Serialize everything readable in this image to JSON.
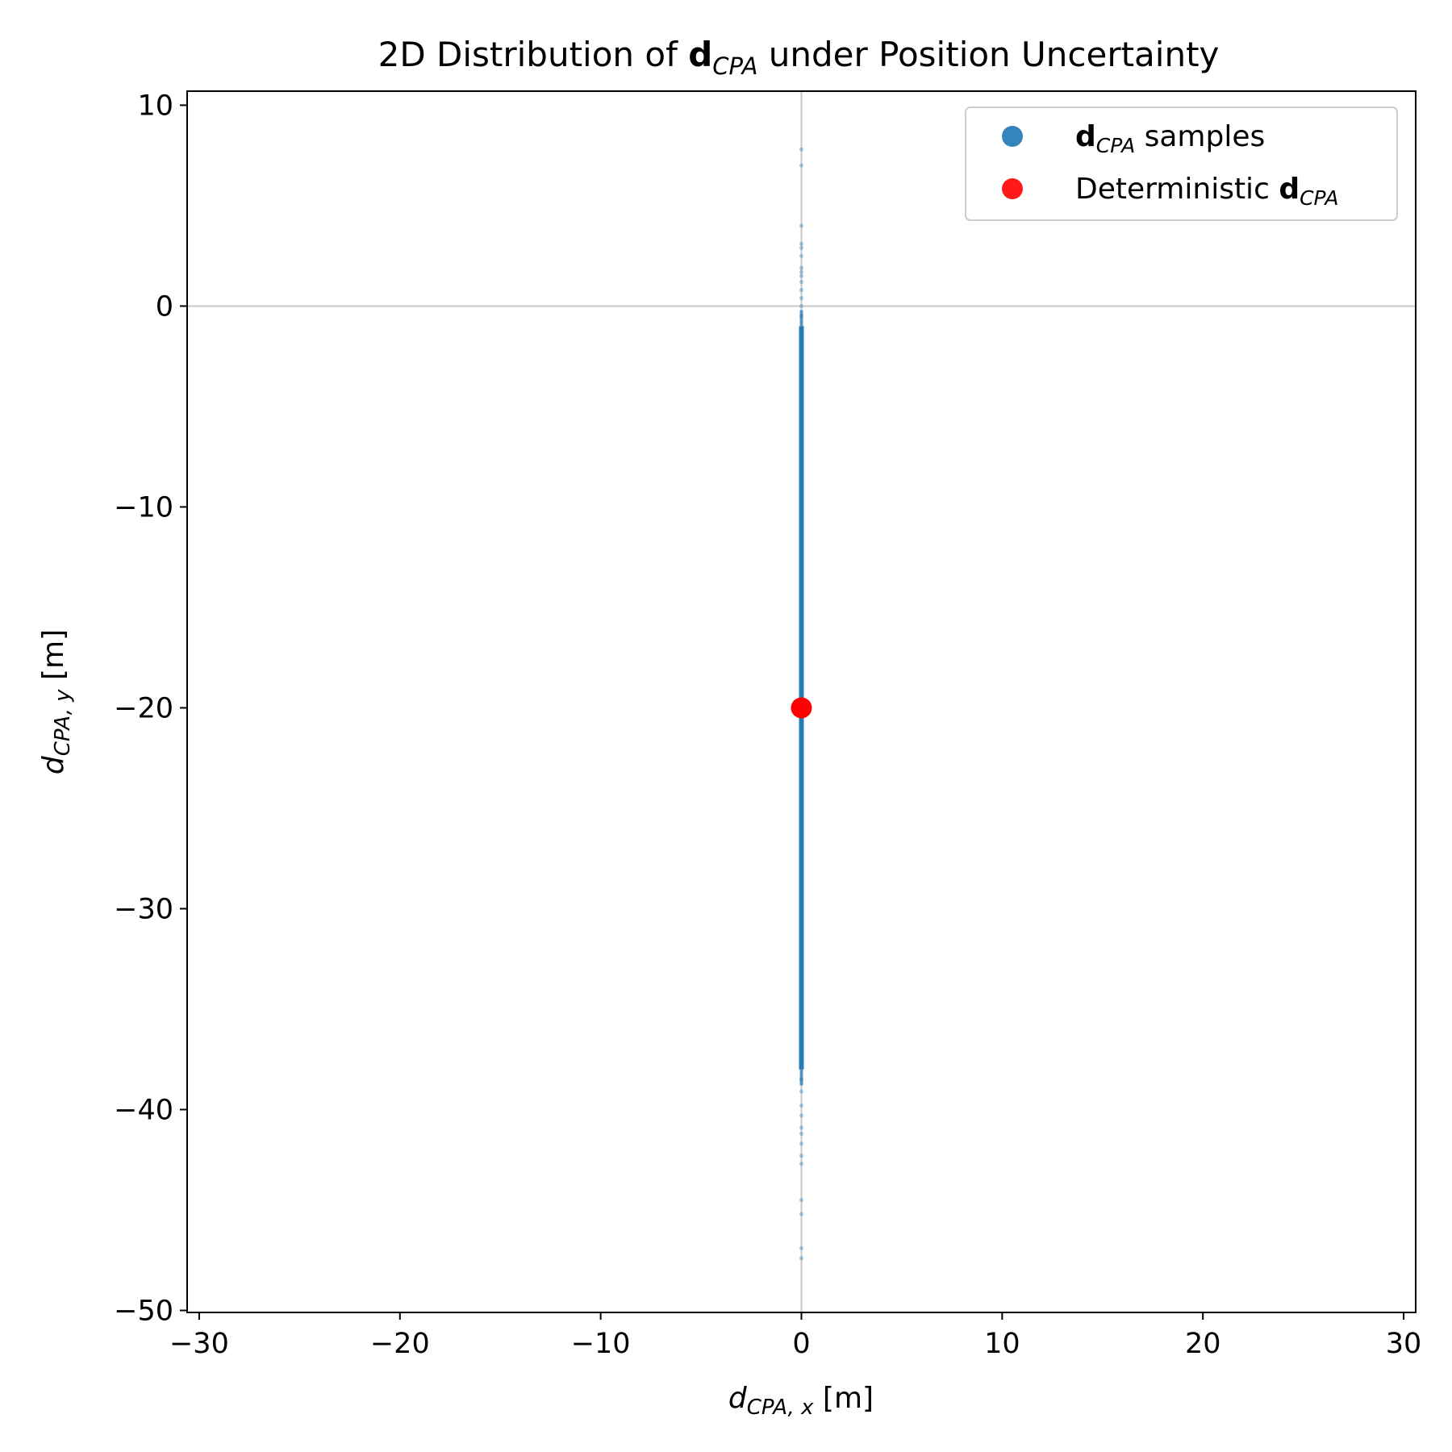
{
  "chart_data": {
    "type": "scatter",
    "title": {
      "prefix": "2D Distribution of ",
      "bold": "d",
      "sub": "CPA",
      "suffix": " under Position Uncertainty"
    },
    "xlabel": {
      "main": "d",
      "sub": "CPA, x",
      "unit": " [m]"
    },
    "ylabel": {
      "main": "d",
      "sub": "CPA, y",
      "unit": " [m]"
    },
    "xlim": [
      -30.6,
      30.6
    ],
    "ylim": [
      -50.1,
      10.7
    ],
    "xticks": [
      -30,
      -20,
      -10,
      0,
      10,
      20,
      30
    ],
    "yticks": [
      10,
      0,
      -10,
      -20,
      -30,
      -40,
      -50
    ],
    "xtick_labels": [
      "−30",
      "−20",
      "−10",
      "0",
      "10",
      "20",
      "30"
    ],
    "ytick_labels": [
      "10",
      "0",
      "−10",
      "−20",
      "−30",
      "−40",
      "−50"
    ],
    "reference_lines": {
      "x": 0,
      "y": 0
    },
    "series": [
      {
        "name_bold": "d",
        "name_sub": "CPA",
        "name_suffix": " samples",
        "color": "#1f77b4",
        "x_value": 0.0,
        "y_dense_range": [
          -38.0,
          -1.0
        ],
        "y_sparse_points": [
          7.8,
          7.0,
          4.0,
          3.1,
          2.9,
          2.5,
          1.9,
          1.7,
          1.5,
          1.2,
          0.8,
          0.4,
          0.0,
          -0.5,
          -38.5,
          -39.1,
          -39.8,
          -40.3,
          -40.9,
          -41.2,
          -41.7,
          -42.3,
          -42.7,
          -44.5,
          -45.2,
          -46.9,
          -47.4
        ]
      },
      {
        "name_prefix": "Deterministic ",
        "name_bold": "d",
        "name_sub": "CPA",
        "color": "#ff0000",
        "points": [
          {
            "x": 0.0,
            "y": -20.0
          }
        ]
      }
    ],
    "legend_position": "top-right"
  }
}
